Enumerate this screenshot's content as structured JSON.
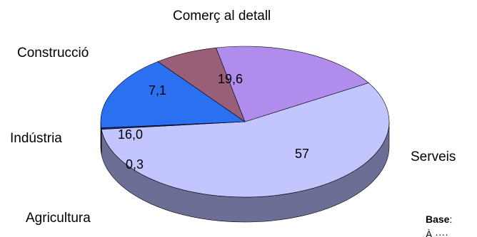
{
  "chart_data": {
    "type": "pie",
    "categories": [
      "Serveis",
      "Agricultura",
      "Indústria",
      "Construcció",
      "Comerç al detall"
    ],
    "values": [
      57,
      0.3,
      16.0,
      7.1,
      19.6
    ],
    "value_labels": [
      "57",
      "0,3",
      "16,0",
      "7,1",
      "19,6"
    ],
    "colors": [
      "#c3c5ff",
      "#1a2f7a",
      "#2b70f0",
      "#9a5f78",
      "#b08ced"
    ],
    "side_colors": [
      "#6c6e96",
      "#0d1a48",
      "#173b80",
      "#5a3546",
      "#6a52a0"
    ],
    "three_d": true,
    "legend": "none"
  },
  "footnote": {
    "bold": "Base",
    "rest": ":",
    "second_line": "À ····"
  }
}
